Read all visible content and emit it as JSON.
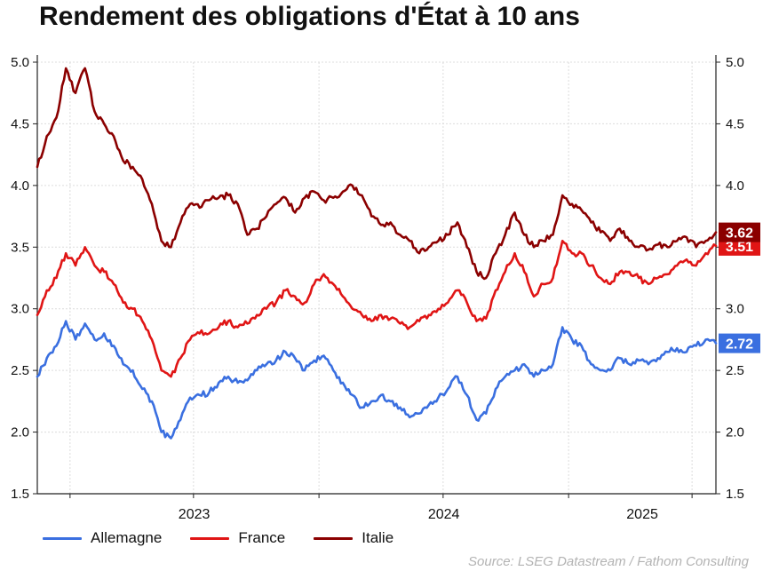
{
  "chart_data": {
    "type": "line",
    "title": "Rendement des obligations d'État à 10 ans",
    "ylim": [
      1.5,
      5.0
    ],
    "yticks": [
      "1.5",
      "2.0",
      "2.5",
      "3.0",
      "3.5",
      "4.0",
      "4.5",
      "5.0"
    ],
    "xlim": [
      "2022-11-14",
      "2025-08-05"
    ],
    "x_labels": [
      "2023",
      "2024",
      "2025"
    ],
    "grid": true,
    "legend_position": "bottom-left",
    "series": [
      {
        "name": "Allemagne",
        "color": "#3a6fe0",
        "end_label": "2.72",
        "points": [
          [
            "2022-11-14",
            2.45
          ],
          [
            "2022-11-28",
            2.6
          ],
          [
            "2022-12-12",
            2.7
          ],
          [
            "2022-12-26",
            2.9
          ],
          [
            "2023-01-09",
            2.75
          ],
          [
            "2023-01-23",
            2.88
          ],
          [
            "2023-02-06",
            2.75
          ],
          [
            "2023-02-20",
            2.8
          ],
          [
            "2023-03-06",
            2.7
          ],
          [
            "2023-03-20",
            2.55
          ],
          [
            "2023-04-03",
            2.5
          ],
          [
            "2023-04-17",
            2.35
          ],
          [
            "2023-05-01",
            2.25
          ],
          [
            "2023-05-15",
            2.0
          ],
          [
            "2023-05-29",
            1.95
          ],
          [
            "2023-06-12",
            2.1
          ],
          [
            "2023-06-26",
            2.28
          ],
          [
            "2023-07-10",
            2.3
          ],
          [
            "2023-07-24",
            2.32
          ],
          [
            "2023-08-07",
            2.4
          ],
          [
            "2023-08-21",
            2.45
          ],
          [
            "2023-09-04",
            2.4
          ],
          [
            "2023-09-18",
            2.42
          ],
          [
            "2023-10-02",
            2.5
          ],
          [
            "2023-10-16",
            2.55
          ],
          [
            "2023-10-30",
            2.58
          ],
          [
            "2023-11-13",
            2.65
          ],
          [
            "2023-11-27",
            2.6
          ],
          [
            "2023-12-11",
            2.5
          ],
          [
            "2023-12-25",
            2.58
          ],
          [
            "2024-01-08",
            2.62
          ],
          [
            "2024-01-22",
            2.5
          ],
          [
            "2024-02-05",
            2.4
          ],
          [
            "2024-02-19",
            2.3
          ],
          [
            "2024-03-04",
            2.2
          ],
          [
            "2024-03-18",
            2.25
          ],
          [
            "2024-04-01",
            2.3
          ],
          [
            "2024-04-15",
            2.25
          ],
          [
            "2024-04-29",
            2.2
          ],
          [
            "2024-05-13",
            2.12
          ],
          [
            "2024-05-27",
            2.15
          ],
          [
            "2024-06-10",
            2.22
          ],
          [
            "2024-06-24",
            2.28
          ],
          [
            "2024-07-08",
            2.35
          ],
          [
            "2024-07-22",
            2.45
          ],
          [
            "2024-08-05",
            2.3
          ],
          [
            "2024-08-19",
            2.1
          ],
          [
            "2024-09-02",
            2.15
          ],
          [
            "2024-09-16",
            2.35
          ],
          [
            "2024-09-30",
            2.45
          ],
          [
            "2024-10-14",
            2.5
          ],
          [
            "2024-10-28",
            2.55
          ],
          [
            "2024-11-11",
            2.45
          ],
          [
            "2024-11-25",
            2.5
          ],
          [
            "2024-12-09",
            2.55
          ],
          [
            "2024-12-23",
            2.85
          ],
          [
            "2025-01-06",
            2.75
          ],
          [
            "2025-01-20",
            2.7
          ],
          [
            "2025-02-03",
            2.55
          ],
          [
            "2025-02-17",
            2.5
          ],
          [
            "2025-03-03",
            2.5
          ],
          [
            "2025-03-17",
            2.6
          ],
          [
            "2025-03-31",
            2.55
          ],
          [
            "2025-04-14",
            2.58
          ],
          [
            "2025-04-28",
            2.55
          ],
          [
            "2025-05-12",
            2.6
          ],
          [
            "2025-05-26",
            2.65
          ],
          [
            "2025-06-09",
            2.68
          ],
          [
            "2025-06-23",
            2.65
          ],
          [
            "2025-07-07",
            2.7
          ],
          [
            "2025-07-21",
            2.75
          ],
          [
            "2025-08-05",
            2.72
          ]
        ]
      },
      {
        "name": "France",
        "color": "#e01515",
        "end_label": "3.51",
        "points": [
          [
            "2022-11-14",
            2.95
          ],
          [
            "2022-11-28",
            3.15
          ],
          [
            "2022-12-12",
            3.25
          ],
          [
            "2022-12-26",
            3.45
          ],
          [
            "2023-01-09",
            3.35
          ],
          [
            "2023-01-23",
            3.5
          ],
          [
            "2023-02-06",
            3.35
          ],
          [
            "2023-02-20",
            3.3
          ],
          [
            "2023-03-06",
            3.2
          ],
          [
            "2023-03-20",
            3.05
          ],
          [
            "2023-04-03",
            3.0
          ],
          [
            "2023-04-17",
            2.9
          ],
          [
            "2023-05-01",
            2.75
          ],
          [
            "2023-05-15",
            2.5
          ],
          [
            "2023-05-29",
            2.45
          ],
          [
            "2023-06-12",
            2.6
          ],
          [
            "2023-06-26",
            2.75
          ],
          [
            "2023-07-10",
            2.8
          ],
          [
            "2023-07-24",
            2.8
          ],
          [
            "2023-08-07",
            2.85
          ],
          [
            "2023-08-21",
            2.9
          ],
          [
            "2023-09-04",
            2.85
          ],
          [
            "2023-09-18",
            2.88
          ],
          [
            "2023-10-02",
            2.95
          ],
          [
            "2023-10-16",
            3.0
          ],
          [
            "2023-10-30",
            3.05
          ],
          [
            "2023-11-13",
            3.15
          ],
          [
            "2023-11-27",
            3.1
          ],
          [
            "2023-12-11",
            3.05
          ],
          [
            "2023-12-25",
            3.2
          ],
          [
            "2024-01-08",
            3.28
          ],
          [
            "2024-01-22",
            3.2
          ],
          [
            "2024-02-05",
            3.1
          ],
          [
            "2024-02-19",
            3.0
          ],
          [
            "2024-03-04",
            2.95
          ],
          [
            "2024-03-18",
            2.9
          ],
          [
            "2024-04-01",
            2.95
          ],
          [
            "2024-04-15",
            2.92
          ],
          [
            "2024-04-29",
            2.88
          ],
          [
            "2024-05-13",
            2.85
          ],
          [
            "2024-05-27",
            2.9
          ],
          [
            "2024-06-10",
            2.95
          ],
          [
            "2024-06-24",
            3.0
          ],
          [
            "2024-07-08",
            3.05
          ],
          [
            "2024-07-22",
            3.15
          ],
          [
            "2024-08-05",
            3.05
          ],
          [
            "2024-08-19",
            2.9
          ],
          [
            "2024-09-02",
            2.92
          ],
          [
            "2024-09-16",
            3.15
          ],
          [
            "2024-09-30",
            3.3
          ],
          [
            "2024-10-14",
            3.45
          ],
          [
            "2024-10-28",
            3.3
          ],
          [
            "2024-11-11",
            3.1
          ],
          [
            "2024-11-25",
            3.2
          ],
          [
            "2024-12-09",
            3.25
          ],
          [
            "2024-12-23",
            3.55
          ],
          [
            "2025-01-06",
            3.45
          ],
          [
            "2025-01-20",
            3.45
          ],
          [
            "2025-02-03",
            3.35
          ],
          [
            "2025-02-17",
            3.25
          ],
          [
            "2025-03-03",
            3.2
          ],
          [
            "2025-03-17",
            3.3
          ],
          [
            "2025-03-31",
            3.3
          ],
          [
            "2025-04-14",
            3.25
          ],
          [
            "2025-04-28",
            3.2
          ],
          [
            "2025-05-12",
            3.25
          ],
          [
            "2025-05-26",
            3.28
          ],
          [
            "2025-06-09",
            3.35
          ],
          [
            "2025-06-23",
            3.4
          ],
          [
            "2025-07-07",
            3.35
          ],
          [
            "2025-07-21",
            3.45
          ],
          [
            "2025-08-05",
            3.51
          ]
        ]
      },
      {
        "name": "Italie",
        "color": "#8b0000",
        "end_label": "3.62",
        "points": [
          [
            "2022-11-14",
            4.15
          ],
          [
            "2022-11-28",
            4.4
          ],
          [
            "2022-12-12",
            4.55
          ],
          [
            "2022-12-26",
            4.95
          ],
          [
            "2023-01-09",
            4.75
          ],
          [
            "2023-01-23",
            4.95
          ],
          [
            "2023-02-06",
            4.6
          ],
          [
            "2023-02-20",
            4.5
          ],
          [
            "2023-03-06",
            4.4
          ],
          [
            "2023-03-20",
            4.2
          ],
          [
            "2023-04-03",
            4.15
          ],
          [
            "2023-04-17",
            4.05
          ],
          [
            "2023-05-01",
            3.85
          ],
          [
            "2023-05-15",
            3.55
          ],
          [
            "2023-05-29",
            3.5
          ],
          [
            "2023-06-12",
            3.7
          ],
          [
            "2023-06-26",
            3.85
          ],
          [
            "2023-07-10",
            3.82
          ],
          [
            "2023-07-24",
            3.88
          ],
          [
            "2023-08-07",
            3.9
          ],
          [
            "2023-08-21",
            3.92
          ],
          [
            "2023-09-04",
            3.85
          ],
          [
            "2023-09-18",
            3.6
          ],
          [
            "2023-10-02",
            3.65
          ],
          [
            "2023-10-16",
            3.75
          ],
          [
            "2023-10-30",
            3.85
          ],
          [
            "2023-11-13",
            3.9
          ],
          [
            "2023-11-27",
            3.78
          ],
          [
            "2023-12-11",
            3.9
          ],
          [
            "2023-12-25",
            3.95
          ],
          [
            "2024-01-08",
            3.88
          ],
          [
            "2024-01-22",
            3.9
          ],
          [
            "2024-02-05",
            3.95
          ],
          [
            "2024-02-19",
            4.0
          ],
          [
            "2024-03-04",
            3.92
          ],
          [
            "2024-03-18",
            3.75
          ],
          [
            "2024-04-01",
            3.68
          ],
          [
            "2024-04-15",
            3.7
          ],
          [
            "2024-04-29",
            3.6
          ],
          [
            "2024-05-13",
            3.55
          ],
          [
            "2024-05-27",
            3.45
          ],
          [
            "2024-06-10",
            3.5
          ],
          [
            "2024-06-24",
            3.55
          ],
          [
            "2024-07-08",
            3.6
          ],
          [
            "2024-07-22",
            3.7
          ],
          [
            "2024-08-05",
            3.5
          ],
          [
            "2024-08-19",
            3.3
          ],
          [
            "2024-09-02",
            3.25
          ],
          [
            "2024-09-16",
            3.45
          ],
          [
            "2024-09-30",
            3.6
          ],
          [
            "2024-10-14",
            3.78
          ],
          [
            "2024-10-28",
            3.6
          ],
          [
            "2024-11-11",
            3.5
          ],
          [
            "2024-11-25",
            3.55
          ],
          [
            "2024-12-09",
            3.6
          ],
          [
            "2024-12-23",
            3.92
          ],
          [
            "2025-01-06",
            3.85
          ],
          [
            "2025-01-20",
            3.8
          ],
          [
            "2025-02-03",
            3.7
          ],
          [
            "2025-02-17",
            3.62
          ],
          [
            "2025-03-03",
            3.55
          ],
          [
            "2025-03-17",
            3.65
          ],
          [
            "2025-03-31",
            3.55
          ],
          [
            "2025-04-14",
            3.5
          ],
          [
            "2025-04-28",
            3.48
          ],
          [
            "2025-05-12",
            3.52
          ],
          [
            "2025-05-26",
            3.5
          ],
          [
            "2025-06-09",
            3.55
          ],
          [
            "2025-06-23",
            3.58
          ],
          [
            "2025-07-07",
            3.5
          ],
          [
            "2025-07-21",
            3.55
          ],
          [
            "2025-08-05",
            3.62
          ]
        ]
      }
    ]
  },
  "source": "Source: LSEG Datastream / Fathom Consulting"
}
